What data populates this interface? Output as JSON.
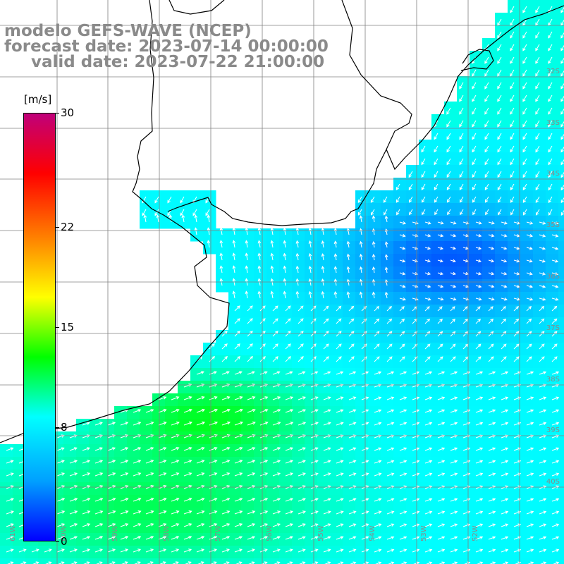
{
  "title": {
    "line1": "modelo GEFS-WAVE (NCEP)",
    "line2": "forecast date: 2023-07-14 00:00:00",
    "line3": "valid date: 2023-07-22 21:00:00"
  },
  "colorbar": {
    "unit": "[m/s]",
    "ticks": [
      "30",
      "22",
      "15",
      "8",
      "0"
    ],
    "tick_values": [
      30,
      22,
      15,
      8,
      0
    ],
    "min": 0,
    "max": 30,
    "colors": [
      "#0000ff",
      "#00a0ff",
      "#00ffff",
      "#00ff00",
      "#ffff00",
      "#ff8000",
      "#ff0000",
      "#c0007a"
    ]
  },
  "grid": {
    "lat_labels": [
      "32S",
      "33S",
      "34S",
      "35S",
      "36S",
      "37S",
      "38S",
      "39S",
      "40S"
    ],
    "lon_labels": [
      "61W",
      "60W",
      "59W",
      "58W",
      "57W",
      "56W",
      "55W",
      "54W",
      "53W",
      "52W"
    ]
  },
  "colors": {
    "land": "#ffffff",
    "gridline": "#808080",
    "coast": "#000000",
    "arrow": "#ffffff"
  }
}
